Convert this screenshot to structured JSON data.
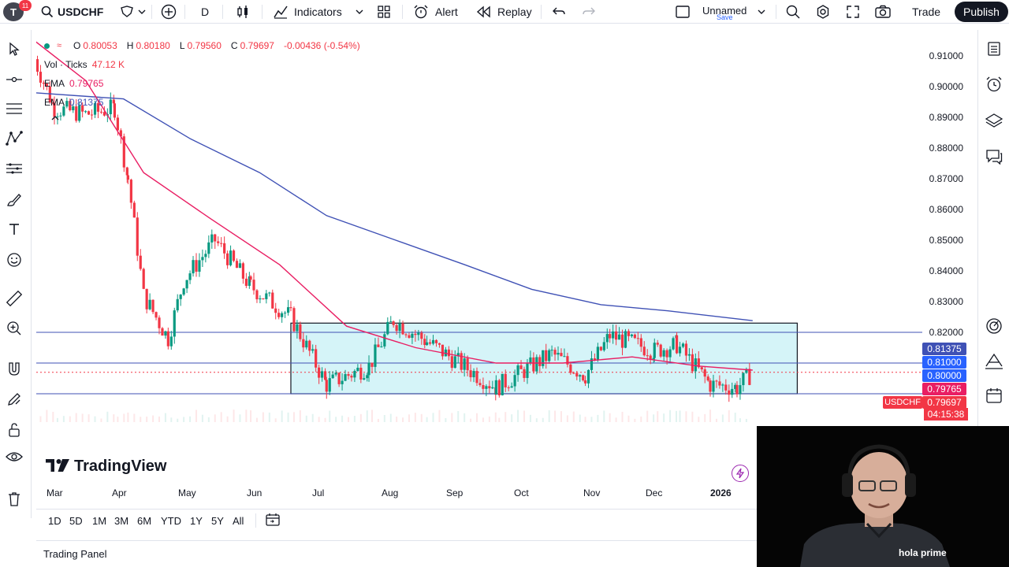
{
  "topbar": {
    "logo_letter": "T",
    "notif_count": "11",
    "symbol": "USDCHF",
    "interval": "D",
    "indicators_label": "Indicators",
    "alert_label": "Alert",
    "replay_label": "Replay",
    "layout_name": "Unnamed",
    "layout_save": "Save",
    "trade_label": "Trade",
    "publish_label": "Publish"
  },
  "legend": {
    "open_label": "O",
    "open": "0.80053",
    "high_label": "H",
    "high": "0.80180",
    "low_label": "L",
    "low": "0.79560",
    "close_label": "C",
    "close": "0.79697",
    "change": "-0.00436 (-0.54%)",
    "vol_label": "Vol · Ticks",
    "vol_value": "47.12 K",
    "ema1_label": "EMA",
    "ema1_value": "0.79765",
    "ema2_label": "EMA",
    "ema2_value": "0.81375"
  },
  "price_axis": {
    "labels": [
      "0.91000",
      "0.90000",
      "0.89000",
      "0.88000",
      "0.87000",
      "0.86000",
      "0.85000",
      "0.84000",
      "0.83000",
      "0.82000"
    ],
    "tag_ema_slow": "0.81375",
    "tag_level_1": "0.81000",
    "tag_level_2": "0.80000",
    "tag_ema_fast": "0.79765",
    "tag_price": "0.79697",
    "countdown": "04:15:38",
    "symbol_tag": "USDCHF"
  },
  "time_axis": [
    "Mar",
    "Apr",
    "May",
    "Jun",
    "Jul",
    "Aug",
    "Sep",
    "Oct",
    "Nov",
    "Dec",
    "2026"
  ],
  "watermark": "TradingView",
  "ranges": [
    "1D",
    "5D",
    "1M",
    "3M",
    "6M",
    "YTD",
    "1Y",
    "5Y",
    "All"
  ],
  "trading_panel_label": "Trading Panel",
  "webcam_shirt_text": "hola prime",
  "colors": {
    "bull": "#089981",
    "bear": "#f23645",
    "ema_fast": "#e91e63",
    "ema_slow": "#3f51b5",
    "range_box_fill": "#b2ebf2",
    "accent": "#2962ff"
  },
  "chart_data": {
    "type": "candlestick",
    "symbol": "USDCHF",
    "ylim": [
      0.782,
      0.915
    ],
    "x_ticks": [
      "Mar",
      "Apr",
      "May",
      "Jun",
      "Jul",
      "Aug",
      "Sep",
      "Oct",
      "Nov",
      "Dec",
      "2026"
    ],
    "close_path": [
      {
        "date": "2025-02-20",
        "close": 0.899
      },
      {
        "date": "2025-03-01",
        "close": 0.883
      },
      {
        "date": "2025-03-15",
        "close": 0.881
      },
      {
        "date": "2025-03-28",
        "close": 0.883
      },
      {
        "date": "2025-04-03",
        "close": 0.86
      },
      {
        "date": "2025-04-10",
        "close": 0.822
      },
      {
        "date": "2025-04-21",
        "close": 0.808
      },
      {
        "date": "2025-04-28",
        "close": 0.827
      },
      {
        "date": "2025-05-12",
        "close": 0.84
      },
      {
        "date": "2025-05-28",
        "close": 0.825
      },
      {
        "date": "2025-06-15",
        "close": 0.815
      },
      {
        "date": "2025-07-01",
        "close": 0.793
      },
      {
        "date": "2025-07-20",
        "close": 0.799
      },
      {
        "date": "2025-07-31",
        "close": 0.814
      },
      {
        "date": "2025-08-15",
        "close": 0.807
      },
      {
        "date": "2025-09-15",
        "close": 0.792
      },
      {
        "date": "2025-10-10",
        "close": 0.803
      },
      {
        "date": "2025-10-25",
        "close": 0.796
      },
      {
        "date": "2025-11-05",
        "close": 0.809
      },
      {
        "date": "2025-11-25",
        "close": 0.804
      },
      {
        "date": "2025-12-05",
        "close": 0.806
      },
      {
        "date": "2025-12-20",
        "close": 0.793
      },
      {
        "date": "2026-01-01",
        "close": 0.792
      },
      {
        "date": "2026-01-08",
        "close": 0.797
      }
    ],
    "ema_fast_path": [
      {
        "date": "2025-02-20",
        "value": 0.905
      },
      {
        "date": "2025-03-15",
        "value": 0.892
      },
      {
        "date": "2025-04-10",
        "value": 0.862
      },
      {
        "date": "2025-05-10",
        "value": 0.847
      },
      {
        "date": "2025-06-10",
        "value": 0.832
      },
      {
        "date": "2025-07-10",
        "value": 0.812
      },
      {
        "date": "2025-08-10",
        "value": 0.805
      },
      {
        "date": "2025-09-15",
        "value": 0.8
      },
      {
        "date": "2025-10-15",
        "value": 0.8
      },
      {
        "date": "2025-11-15",
        "value": 0.802
      },
      {
        "date": "2025-12-15",
        "value": 0.799
      },
      {
        "date": "2026-01-08",
        "value": 0.7977
      }
    ],
    "ema_slow_path": [
      {
        "date": "2025-02-20",
        "value": 0.888
      },
      {
        "date": "2025-04-01",
        "value": 0.886
      },
      {
        "date": "2025-05-01",
        "value": 0.873
      },
      {
        "date": "2025-06-01",
        "value": 0.862
      },
      {
        "date": "2025-07-01",
        "value": 0.848
      },
      {
        "date": "2025-08-01",
        "value": 0.84
      },
      {
        "date": "2025-09-01",
        "value": 0.832
      },
      {
        "date": "2025-10-01",
        "value": 0.824
      },
      {
        "date": "2025-11-01",
        "value": 0.819
      },
      {
        "date": "2025-12-01",
        "value": 0.817
      },
      {
        "date": "2026-01-08",
        "value": 0.8138
      }
    ],
    "horizontal_levels": [
      0.81,
      0.8,
      0.79
    ],
    "range_box": {
      "start": "2025-06-15",
      "end": "2026-01-28",
      "top": 0.813,
      "bottom": 0.79
    }
  }
}
